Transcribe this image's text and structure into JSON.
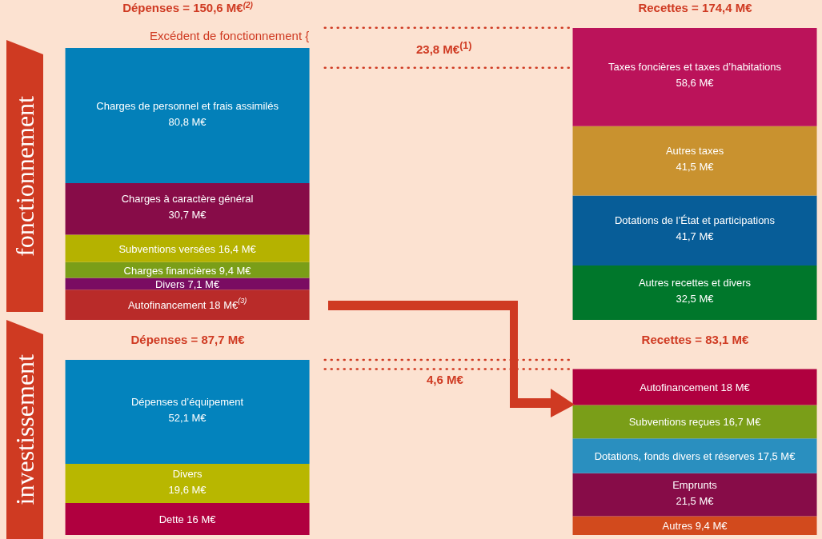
{
  "chart_data": [
    {
      "type": "bar",
      "title": "fonctionnement",
      "stacked": true,
      "legend": false,
      "categories": [
        "Dépenses = 150,6 M€$^{(2)}$",
        "Recettes = 174,4 M€"
      ],
      "annotations": [
        "Excédent de fonctionnement {",
        "23,8 M€$^{(1)}$"
      ],
      "ref_lines": [
        {
          "axis": "y",
          "value": 174.4,
          "color": "#cf3a22",
          "line_style": "dotted"
        },
        {
          "axis": "y",
          "value": 150.6,
          "color": "#cf3a22",
          "line_style": "dotted"
        }
      ],
      "series": [
        {
          "name": "Autofinancement",
          "color": "#b92b29",
          "values": [
            18,
            null
          ],
          "value_labels": [
            "18 M€$^{(3)}$",
            null
          ]
        },
        {
          "name": "Divers",
          "color": "#7a0c62",
          "values": [
            7.1,
            null
          ],
          "value_labels": [
            "7,1 M€",
            null
          ]
        },
        {
          "name": "Charges financières",
          "color": "#7a9e18",
          "values": [
            9.4,
            null
          ],
          "value_labels": [
            "9,4 M€",
            null
          ]
        },
        {
          "name": "Subventions versées",
          "color": "#b5b200",
          "values": [
            16.4,
            null
          ],
          "value_labels": [
            "16,4 M€",
            null
          ]
        },
        {
          "name": "Charges à caractère général",
          "color": "#870c48",
          "values": [
            30.7,
            null
          ],
          "value_labels": [
            "30,7 M€",
            null
          ]
        },
        {
          "name": "Charges de personnel et frais assimilés",
          "color": "#0380b9",
          "values": [
            80.8,
            null
          ],
          "value_labels": [
            "80,8 M€",
            null
          ]
        },
        {
          "name": "Autres recettes et divers",
          "color": "#00772b",
          "values": [
            null,
            32.5
          ],
          "value_labels": [
            null,
            "32,5 M€"
          ]
        },
        {
          "name": "Dotations de l’État et participations",
          "color": "#075d98",
          "values": [
            null,
            41.7
          ],
          "value_labels": [
            null,
            "41,7 M€"
          ]
        },
        {
          "name": "Autres taxes",
          "color": "#c9922f",
          "values": [
            null,
            41.5
          ],
          "value_labels": [
            null,
            "41,5 M€"
          ]
        },
        {
          "name": "Taxes foncières et taxes d’habitations",
          "color": "#bb135a",
          "values": [
            null,
            58.6
          ],
          "value_labels": [
            null,
            "58,6 M€"
          ]
        }
      ]
    },
    {
      "type": "bar",
      "title": "investissement",
      "stacked": true,
      "legend": false,
      "categories": [
        "Dépenses = 87,7 M€",
        "Recettes =  83,1 M€"
      ],
      "annotations": [
        "4,6 M€"
      ],
      "ref_lines": [
        {
          "axis": "y",
          "value": 87.7,
          "color": "#cf3a22",
          "line_style": "dotted"
        },
        {
          "axis": "y",
          "value": 83.1,
          "color": "#cf3a22",
          "line_style": "dotted"
        }
      ],
      "series": [
        {
          "name": "Dette",
          "color": "#b0003f",
          "values": [
            16,
            null
          ],
          "value_labels": [
            "16 M€",
            null
          ]
        },
        {
          "name": "Divers",
          "color": "#b8b700",
          "values": [
            19.6,
            null
          ],
          "value_labels": [
            "19,6 M€",
            null
          ]
        },
        {
          "name": "Dépenses d’équipement",
          "color": "#0383bd",
          "values": [
            52.1,
            null
          ],
          "value_labels": [
            "52,1 M€",
            null
          ]
        },
        {
          "name": "Autres",
          "color": "#d24a1d",
          "values": [
            null,
            9.4
          ],
          "value_labels": [
            null,
            "9,4 M€"
          ]
        },
        {
          "name": "Emprunts",
          "color": "#870c48",
          "values": [
            null,
            21.5
          ],
          "value_labels": [
            null,
            "21,5 M€"
          ]
        },
        {
          "name": "Dotations, fonds divers et réserves",
          "color": "#2a8fbf",
          "values": [
            null,
            17.5
          ],
          "value_labels": [
            null,
            "17,5 M€"
          ]
        },
        {
          "name": "Subventions reçues",
          "color": "#7a9e18",
          "values": [
            null,
            16.7
          ],
          "value_labels": [
            null,
            "16,7 M€"
          ]
        },
        {
          "name": "Autofinancement",
          "color": "#b0003f",
          "values": [
            null,
            18
          ],
          "value_labels": [
            null,
            "18 M€"
          ]
        }
      ]
    }
  ]
}
